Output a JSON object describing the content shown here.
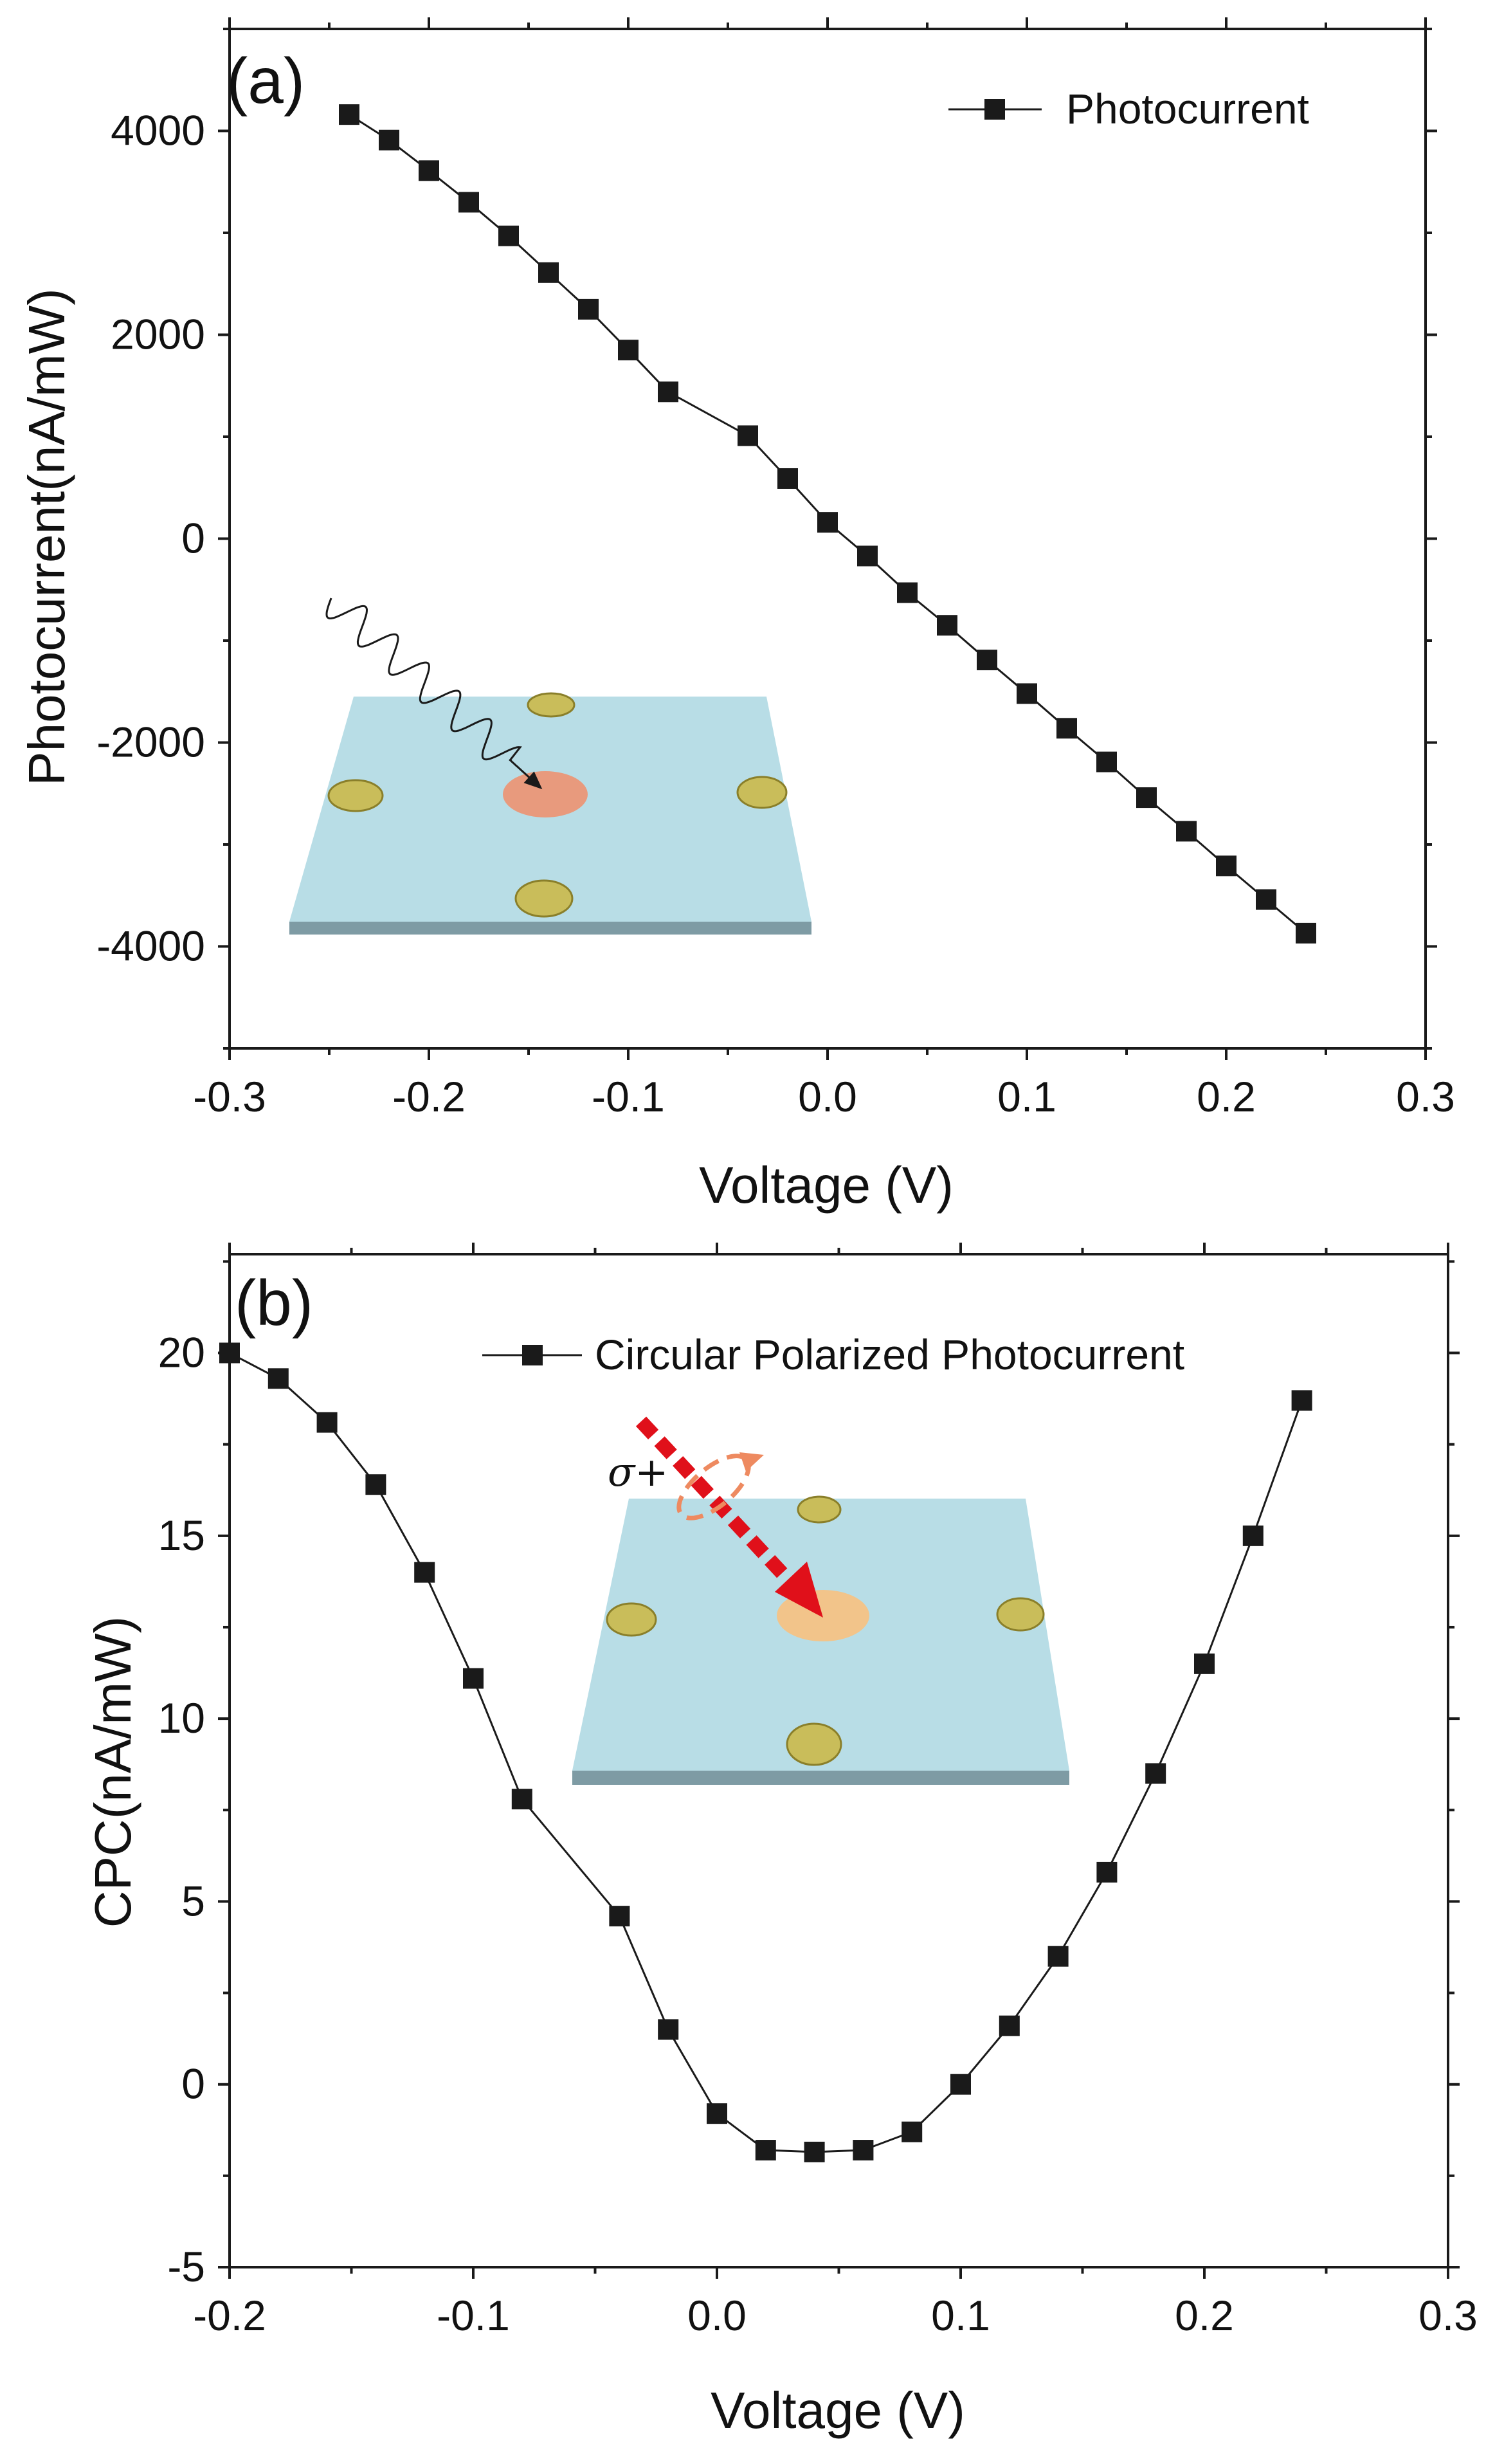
{
  "chart_data": [
    {
      "type": "line",
      "panel_label": "(a)",
      "xlabel": "Voltage (V)",
      "ylabel": "Photocurrent(nA/mW)",
      "xlim": [
        -0.3,
        0.3
      ],
      "ylim": [
        -5000,
        5000
      ],
      "xticks": [
        -0.3,
        -0.2,
        -0.1,
        0.0,
        0.1,
        0.2,
        0.3
      ],
      "xtick_labels": [
        "-0.3",
        "-0.2",
        "-0.1",
        "0.0",
        "0.1",
        "0.2",
        "0.3"
      ],
      "yticks": [
        -4000,
        -2000,
        0,
        2000,
        4000
      ],
      "ytick_labels": [
        "-4000",
        "-2000",
        "0",
        "2000",
        "4000"
      ],
      "legend_position": "top-right",
      "marker_color": "#1a1a1a",
      "inset": {
        "substrate_color": "#b8dde6",
        "spot_color": "#e89a7d",
        "contact_color": "#c9bd5a"
      },
      "series": [
        {
          "name": "Photocurrent",
          "x": [
            -0.24,
            -0.22,
            -0.2,
            -0.18,
            -0.16,
            -0.14,
            -0.12,
            -0.1,
            -0.08,
            -0.04,
            -0.02,
            0.0,
            0.02,
            0.04,
            0.06,
            0.08,
            0.1,
            0.12,
            0.14,
            0.16,
            0.18,
            0.2,
            0.22,
            0.24
          ],
          "y": [
            4160,
            3910,
            3610,
            3300,
            2970,
            2610,
            2250,
            1850,
            1440,
            1010,
            590,
            160,
            -170,
            -530,
            -850,
            -1190,
            -1520,
            -1860,
            -2190,
            -2540,
            -2870,
            -3210,
            -3540,
            -3870
          ]
        }
      ]
    },
    {
      "type": "line",
      "panel_label": "(b)",
      "xlabel": "Voltage (V)",
      "ylabel": "CPC(nA/mW)",
      "xlim": [
        -0.2,
        0.3
      ],
      "ylim": [
        -5,
        22.7
      ],
      "xticks": [
        -0.2,
        -0.1,
        0.0,
        0.1,
        0.2,
        0.3
      ],
      "xtick_labels": [
        "-0.2",
        "-0.1",
        "0.0",
        "0.1",
        "0.2",
        "0.3"
      ],
      "yticks": [
        -5,
        0,
        5,
        10,
        15,
        20
      ],
      "ytick_labels": [
        "-5",
        "0",
        "5",
        "10",
        "15",
        "20"
      ],
      "legend_position": "top-center",
      "marker_color": "#1a1a1a",
      "annotation": "σ+",
      "inset": {
        "substrate_color": "#b8dde6",
        "spot_color": "#f2c48a",
        "contact_color": "#c9bd5a",
        "arrow_color": "#e0101a",
        "ring_color": "#ee8a60"
      },
      "series": [
        {
          "name": "Circular Polarized Photocurrent",
          "x": [
            -0.2,
            -0.18,
            -0.16,
            -0.14,
            -0.12,
            -0.1,
            -0.08,
            -0.04,
            -0.02,
            0.0,
            0.02,
            0.04,
            0.06,
            0.08,
            0.1,
            0.12,
            0.14,
            0.16,
            0.18,
            0.2,
            0.22,
            0.24
          ],
          "y": [
            20.0,
            19.3,
            18.1,
            16.4,
            14.0,
            11.1,
            7.8,
            4.6,
            1.5,
            -0.8,
            -1.8,
            -1.85,
            -1.8,
            -1.3,
            0.0,
            1.6,
            3.5,
            5.8,
            8.5,
            11.5,
            15.0,
            18.7
          ]
        }
      ]
    }
  ]
}
